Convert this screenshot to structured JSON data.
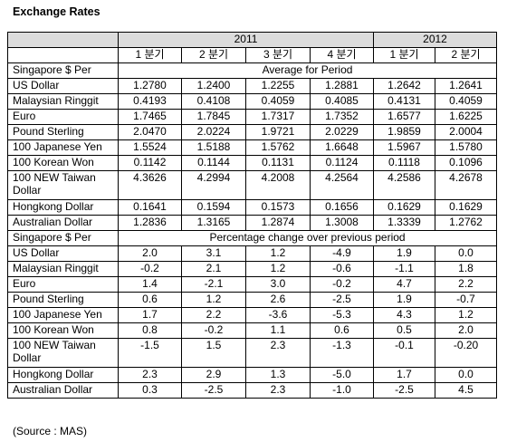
{
  "title": "Exchange Rates",
  "years": [
    "2011",
    "2012"
  ],
  "quarters": [
    "1 분기",
    "2 분기",
    "3 분기",
    "4 분기",
    "1 분기",
    "2 분기"
  ],
  "sections": [
    {
      "row_label": "Singapore $ Per",
      "heading": "Average for Period",
      "rows": [
        {
          "label": "US Dollar",
          "values": [
            "1.2780",
            "1.2400",
            "1.2255",
            "1.2881",
            "1.2642",
            "1.2641"
          ]
        },
        {
          "label": "Malaysian Ringgit",
          "values": [
            "0.4193",
            "0.4108",
            "0.4059",
            "0.4085",
            "0.4131",
            "0.4059"
          ]
        },
        {
          "label": "Euro",
          "values": [
            "1.7465",
            "1.7845",
            "1.7317",
            "1.7352",
            "1.6577",
            "1.6225"
          ]
        },
        {
          "label": "Pound Sterling",
          "values": [
            "2.0470",
            "2.0224",
            "1.9721",
            "2.0229",
            "1.9859",
            "2.0004"
          ]
        },
        {
          "label": "100 Japanese Yen",
          "values": [
            "1.5524",
            "1.5188",
            "1.5762",
            "1.6648",
            "1.5967",
            "1.5780"
          ]
        },
        {
          "label": "100 Korean Won",
          "values": [
            "0.1142",
            "0.1144",
            "0.1131",
            "0.1124",
            "0.1118",
            "0.1096"
          ]
        },
        {
          "label": "100 NEW Taiwan Dollar",
          "values": [
            "4.3626",
            "4.2994",
            "4.2008",
            "4.2564",
            "4.2586",
            "4.2678"
          ]
        },
        {
          "label": "Hongkong Dollar",
          "values": [
            "0.1641",
            "0.1594",
            "0.1573",
            "0.1656",
            "0.1629",
            "0.1629"
          ]
        },
        {
          "label": "Australian Dollar",
          "values": [
            "1.2836",
            "1.3165",
            "1.2874",
            "1.3008",
            "1.3339",
            "1.2762"
          ]
        }
      ]
    },
    {
      "row_label": "Singapore $ Per",
      "heading": "Percentage change over previous period",
      "rows": [
        {
          "label": "US Dollar",
          "values": [
            "2.0",
            "3.1",
            "1.2",
            "-4.9",
            "1.9",
            "0.0"
          ]
        },
        {
          "label": "Malaysian Ringgit",
          "values": [
            "-0.2",
            "2.1",
            "1.2",
            "-0.6",
            "-1.1",
            "1.8"
          ]
        },
        {
          "label": "Euro",
          "values": [
            "1.4",
            "-2.1",
            "3.0",
            "-0.2",
            "4.7",
            "2.2"
          ]
        },
        {
          "label": "Pound Sterling",
          "values": [
            "0.6",
            "1.2",
            "2.6",
            "-2.5",
            "1.9",
            "-0.7"
          ]
        },
        {
          "label": "100 Japanese Yen",
          "values": [
            "1.7",
            "2.2",
            "-3.6",
            "-5.3",
            "4.3",
            "1.2"
          ]
        },
        {
          "label": "100 Korean Won",
          "values": [
            "0.8",
            "-0.2",
            "1.1",
            "0.6",
            "0.5",
            "2.0"
          ]
        },
        {
          "label": "100 NEW Taiwan Dollar",
          "values": [
            "-1.5",
            "1.5",
            "2.3",
            "-1.3",
            "-0.1",
            "-0.20"
          ]
        },
        {
          "label": "Hongkong Dollar",
          "values": [
            "2.3",
            "2.9",
            "1.3",
            "-5.0",
            "1.7",
            "0.0"
          ]
        },
        {
          "label": "Australian Dollar",
          "values": [
            "0.3",
            "-2.5",
            "2.3",
            "-1.0",
            "-2.5",
            "4.5"
          ]
        }
      ]
    }
  ],
  "source": "(Source : MAS)",
  "colors": {
    "header_fill": "#dcdcdc",
    "border": "#000000"
  }
}
